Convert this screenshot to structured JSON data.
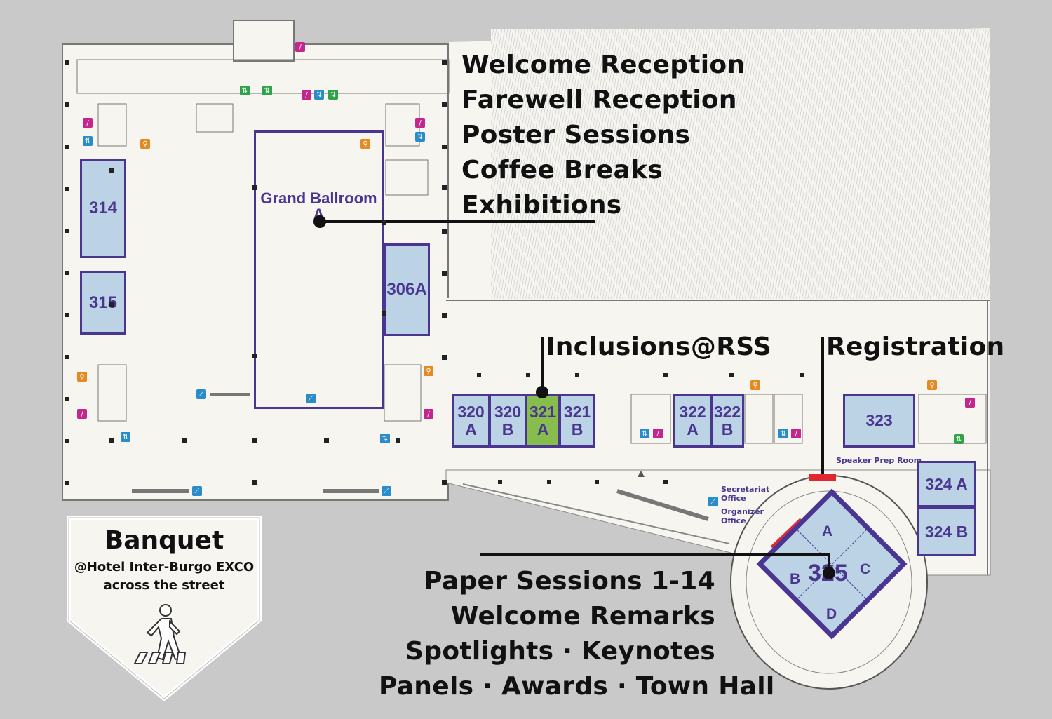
{
  "events": {
    "ballroom_lines": [
      "Welcome Reception",
      "Farewell Reception",
      "Poster Sessions",
      "Coffee Breaks",
      "Exhibitions"
    ],
    "inclusions": "Inclusions@RSS",
    "registration": "Registration",
    "main_lines": [
      "Paper Sessions 1-14",
      "Welcome Remarks",
      "Spotlights · Keynotes",
      "Panels · Awards · Town Hall"
    ]
  },
  "rooms": {
    "grand_ballroom": "Grand Ballroom A",
    "r314": "314",
    "r315": "315",
    "r306a": "306A",
    "r320a": [
      "320",
      "A"
    ],
    "r320b": [
      "320",
      "B"
    ],
    "r321a": [
      "321",
      "A"
    ],
    "r321b": [
      "321",
      "B"
    ],
    "r322a": [
      "322",
      "A"
    ],
    "r322b": [
      "322",
      "B"
    ],
    "r323": "323",
    "r324a": "324 A",
    "r324b": "324 B",
    "r325": "325",
    "r325_sections": {
      "a": "A",
      "b": "B",
      "c": "C",
      "d": "D"
    }
  },
  "small_labels": {
    "speaker_prep": "Speaker Prep Room",
    "secretariat": [
      "Secretariat",
      "Office"
    ],
    "organizer": [
      "Organizer",
      "Office"
    ]
  },
  "banquet": {
    "title": "Banquet",
    "venue": "@Hotel Inter-Burgo EXCO",
    "note": "across the street"
  },
  "colors": {
    "room_fill": "#bcd3e6",
    "room_border": "#4a3591",
    "highlight_room": "#86bd4c",
    "floor": "#f7f5ef",
    "background": "#c9c9c9"
  }
}
